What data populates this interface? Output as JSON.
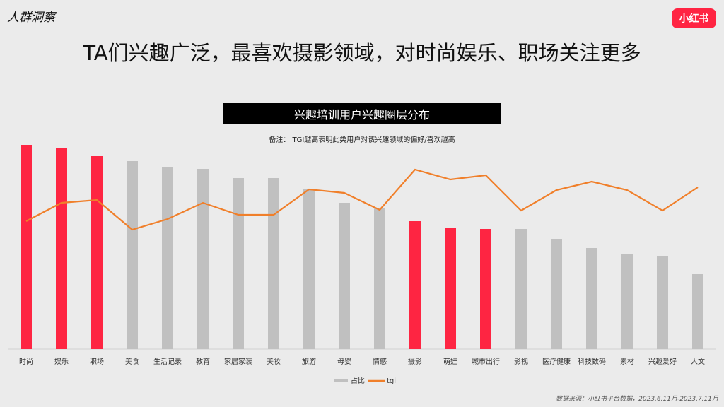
{
  "header": {
    "section": "人群洞察",
    "logo": "小红书",
    "headline": "TA们兴趣广泛，最喜欢摄影领域，对时尚娱乐、职场关注更多"
  },
  "chart_data": {
    "type": "bar+line",
    "title": "兴趣培训用户兴趣圈层分布",
    "note": "备注：  TGI越高表明此类用户对该兴趣领域的偏好/喜欢越高",
    "categories": [
      "时尚",
      "娱乐",
      "职场",
      "美食",
      "生活记录",
      "教育",
      "家居家装",
      "美妆",
      "旅游",
      "母婴",
      "情感",
      "摄影",
      "萌娃",
      "城市出行",
      "影视",
      "医疗健康",
      "科技数码",
      "素材",
      "兴趣爱好",
      "人文"
    ],
    "series": [
      {
        "name": "占比",
        "type": "bar",
        "values": [
          289,
          285,
          273,
          266,
          257,
          255,
          242,
          242,
          226,
          207,
          199,
          181,
          172,
          170,
          170,
          156,
          143,
          135,
          132,
          106
        ],
        "highlighted": [
          true,
          true,
          true,
          false,
          false,
          false,
          false,
          false,
          false,
          false,
          false,
          true,
          true,
          true,
          false,
          false,
          false,
          false,
          false,
          false
        ]
      },
      {
        "name": "tgi",
        "type": "line",
        "values": [
          181,
          207,
          211,
          169,
          184,
          207,
          190,
          190,
          226,
          221,
          197,
          254,
          240,
          246,
          196,
          225,
          237,
          225,
          196,
          229
        ]
      }
    ],
    "ylim": [
      0,
      300
    ],
    "grid": false,
    "legend": "bottom",
    "colors": {
      "highlight": "#fe2542",
      "bar": "#c0c0c0",
      "line": "#f07f2a"
    }
  },
  "footer": {
    "source": "数据来源：小红书平台数据，2023.6.11月-2023.7.11月"
  }
}
